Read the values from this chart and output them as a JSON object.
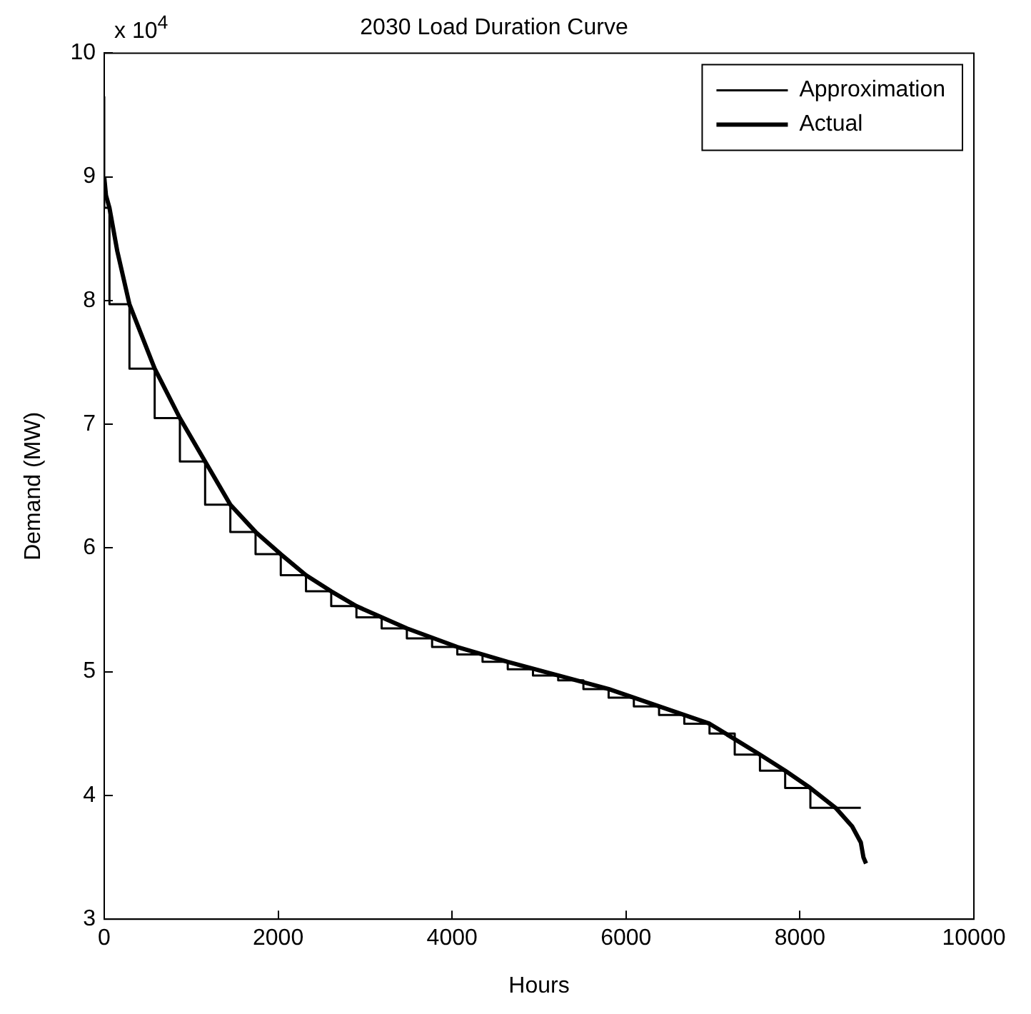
{
  "chart_data": {
    "type": "line",
    "title": "2030 Load Duration Curve",
    "xlabel": "Hours",
    "ylabel": "Demand (MW)",
    "annotations": [
      "x 10$^{4}$"
    ],
    "xlim": [
      0,
      10000
    ],
    "xticks": [
      0,
      2000,
      4000,
      6000,
      8000,
      10000
    ],
    "ylim": [
      3,
      10
    ],
    "yticks": [
      3,
      4,
      5,
      6,
      7,
      8,
      9,
      10
    ],
    "grid": false,
    "legend": "top right",
    "marker": "none",
    "line_style": "solid",
    "series": [
      {
        "name": "Approximation",
        "type": "step",
        "color": "#000000",
        "x": [
          0,
          60,
          290,
          580,
          870,
          1160,
          1450,
          1740,
          2030,
          2320,
          2610,
          2900,
          3190,
          3480,
          3770,
          4060,
          4350,
          4640,
          4930,
          5220,
          5510,
          5800,
          6090,
          6380,
          6670,
          6960,
          7250,
          7540,
          7830,
          8120,
          8410,
          8700
        ],
        "values": [
          9.65,
          8.75,
          7.97,
          7.45,
          7.05,
          6.7,
          6.35,
          6.13,
          5.95,
          5.78,
          5.65,
          5.53,
          5.44,
          5.35,
          5.27,
          5.2,
          5.14,
          5.08,
          5.02,
          4.97,
          4.93,
          4.86,
          4.79,
          4.72,
          4.65,
          4.58,
          4.5,
          4.33,
          4.2,
          4.06,
          3.9,
          3.9
        ]
      },
      {
        "name": "Actual",
        "type": "line",
        "color": "#000000",
        "x": [
          0,
          20,
          60,
          150,
          290,
          580,
          870,
          1160,
          1450,
          1740,
          2030,
          2320,
          2610,
          2900,
          3480,
          4060,
          4640,
          5220,
          5800,
          6380,
          6960,
          7540,
          7830,
          8120,
          8410,
          8600,
          8700,
          8730,
          8760
        ],
        "values": [
          9.0,
          8.85,
          8.75,
          8.4,
          7.97,
          7.45,
          7.05,
          6.7,
          6.35,
          6.13,
          5.95,
          5.78,
          5.65,
          5.53,
          5.35,
          5.2,
          5.08,
          4.97,
          4.86,
          4.72,
          4.58,
          4.33,
          4.2,
          4.06,
          3.9,
          3.75,
          3.62,
          3.5,
          3.45
        ]
      }
    ]
  }
}
